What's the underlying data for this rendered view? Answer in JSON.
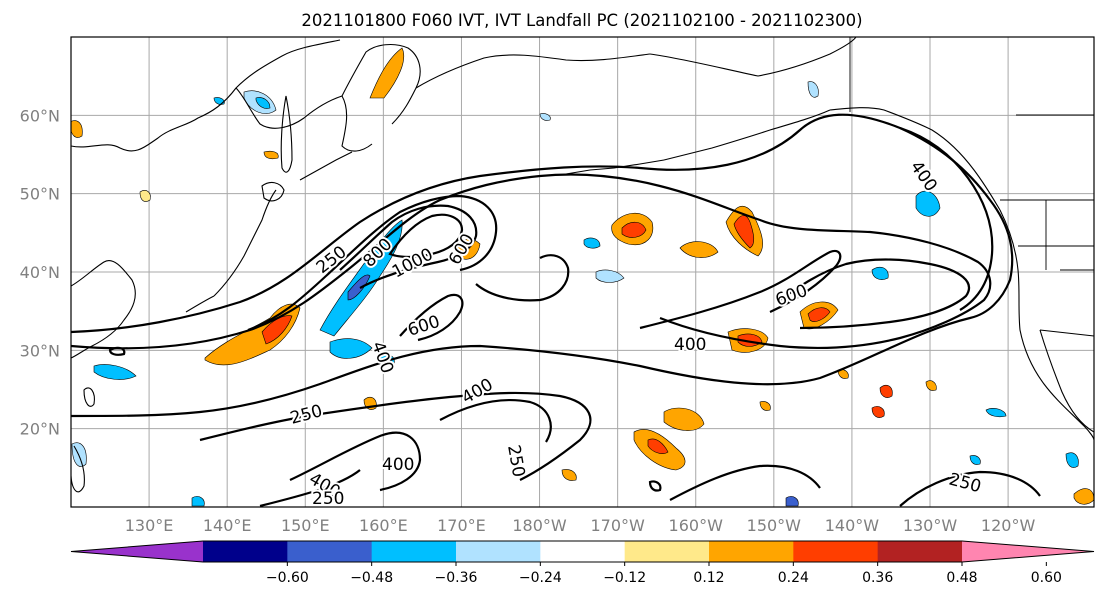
{
  "title": "2021101800 F060 IVT, IVT Landfall PC (2021102100 - 2021102300)",
  "map": {
    "lat_labels": [
      "60°N",
      "50°N",
      "40°N",
      "30°N",
      "20°N"
    ],
    "lat_values": [
      60,
      50,
      40,
      30,
      20
    ],
    "lon_labels": [
      "130°E",
      "140°E",
      "150°E",
      "160°E",
      "170°E",
      "180°W",
      "170°W",
      "160°W",
      "150°W",
      "140°W",
      "130°W",
      "120°W"
    ],
    "lon_values": [
      130,
      140,
      150,
      160,
      170,
      180,
      190,
      200,
      210,
      220,
      230,
      240
    ],
    "lon_range": [
      120,
      251
    ],
    "lat_range": [
      10,
      70
    ],
    "grid": true,
    "ivt_contour_labels": [
      "250",
      "800",
      "1000",
      "600",
      "600",
      "400",
      "600",
      "400",
      "400",
      "250",
      "400",
      "400",
      "250",
      "250",
      "400",
      "250"
    ]
  },
  "colorbar": {
    "ticks": [
      "−0.60",
      "−0.48",
      "−0.36",
      "−0.24",
      "−0.12",
      "0.12",
      "0.24",
      "0.36",
      "0.48",
      "0.60"
    ],
    "colors": [
      "#9932cc",
      "#00008b",
      "#3a5fcd",
      "#00bfff",
      "#b0e2ff",
      "#ffffff",
      "#ffe98a",
      "#ffa500",
      "#ff3e00",
      "#b22222",
      "#ff85b0"
    ]
  }
}
